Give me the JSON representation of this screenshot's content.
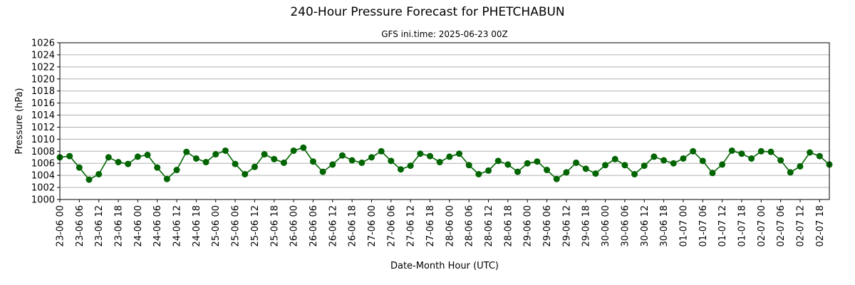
{
  "chart_data": {
    "type": "line",
    "title": "240-Hour Pressure Forecast for PHETCHABUN",
    "subtitle": "GFS ini.time: 2025-06-23 00Z",
    "xlabel": "Date-Month Hour (UTC)",
    "ylabel": "Pressure (hPa)",
    "ylim": [
      1000,
      1026
    ],
    "yticks": [
      1000,
      1002,
      1004,
      1006,
      1008,
      1010,
      1012,
      1014,
      1016,
      1018,
      1020,
      1022,
      1024,
      1026
    ],
    "grid": "horizontal",
    "line_color": "#006400",
    "x_tick_labels": [
      "23-06 00",
      "23-06 06",
      "23-06 12",
      "23-06 18",
      "24-06 00",
      "24-06 06",
      "24-06 12",
      "24-06 18",
      "25-06 00",
      "25-06 06",
      "25-06 12",
      "25-06 18",
      "26-06 00",
      "26-06 06",
      "26-06 12",
      "26-06 18",
      "27-06 00",
      "27-06 06",
      "27-06 12",
      "27-06 18",
      "28-06 00",
      "28-06 06",
      "28-06 12",
      "28-06 18",
      "29-06 00",
      "29-06 06",
      "29-06 12",
      "29-06 18",
      "30-06 00",
      "30-06 06",
      "30-06 12",
      "30-06 18",
      "01-07 00",
      "01-07 06",
      "01-07 12",
      "01-07 18",
      "02-07 00",
      "02-07 06",
      "02-07 12",
      "02-07 18"
    ],
    "x_step_hours": 3,
    "series": [
      {
        "values": [
          1007.0,
          1007.2,
          1005.3,
          1003.3,
          1004.2,
          1007.0,
          1006.2,
          1005.9,
          1007.1,
          1007.4,
          1005.3,
          1003.4,
          1004.9,
          1007.9,
          1006.8,
          1006.2,
          1007.5,
          1008.1,
          1005.9,
          1004.2,
          1005.4,
          1007.5,
          1006.7,
          1006.1,
          1008.1,
          1008.6,
          1006.3,
          1004.6,
          1005.8,
          1007.3,
          1006.5,
          1006.1,
          1007.0,
          1008.0,
          1006.4,
          1005.0,
          1005.6,
          1007.6,
          1007.2,
          1006.2,
          1007.1,
          1007.6,
          1005.7,
          1004.2,
          1004.8,
          1006.4,
          1005.8,
          1004.6,
          1006.0,
          1006.3,
          1004.9,
          1003.4,
          1004.5,
          1006.1,
          1005.1,
          1004.3,
          1005.7,
          1006.7,
          1005.7,
          1004.2,
          1005.6,
          1007.1,
          1006.5,
          1006.0,
          1006.8,
          1008.0,
          1006.4,
          1004.4,
          1005.8,
          1008.1,
          1007.6,
          1006.8,
          1008.0,
          1007.9,
          1006.5,
          1004.5,
          1005.5,
          1007.8,
          1007.2,
          1005.8
        ]
      }
    ]
  }
}
